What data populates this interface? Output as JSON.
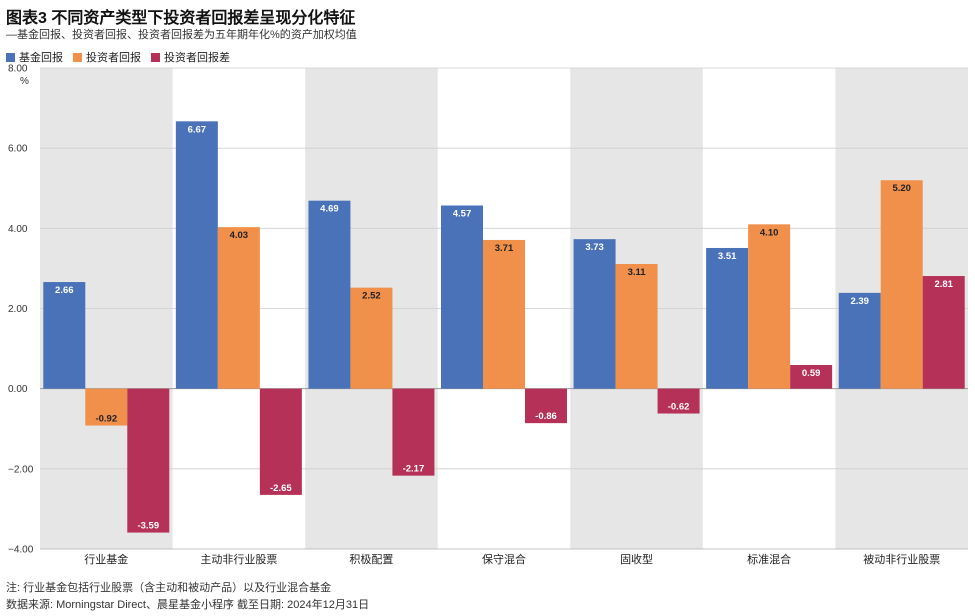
{
  "header": {
    "title": "图表3 不同资产类型下投资者回报差呈现分化特征",
    "subtitle": "—基金回报、投资者回报、投资者回报差为五年期年化%的资产加权均值"
  },
  "footer": {
    "note": "注: 行业基金包括行业股票（含主动和被动产品）以及行业混合基金",
    "source": "数据来源: Morningstar Direct、晨星基金小程序 截至日期: 2024年12月31日"
  },
  "colors": {
    "fund": "#4a72b8",
    "investor": "#f0904a",
    "gap": "#b53157",
    "band": "#e6e6e6"
  },
  "chart_data": {
    "type": "bar",
    "title": "图表3 不同资产类型下投资者回报差呈现分化特征",
    "ylabel": "%",
    "ylim": [
      -4.0,
      8.0
    ],
    "yticks": [
      "8.00",
      "6.00",
      "4.00",
      "2.00",
      "0.00",
      "−2.00",
      "−4.00"
    ],
    "ytick_values": [
      8,
      6,
      4,
      2,
      0,
      -2,
      -4
    ],
    "unit": "%",
    "categories": [
      "行业基金",
      "主动非行业股票",
      "积极配置",
      "保守混合",
      "固收型",
      "标准混合",
      "被动非行业股票"
    ],
    "series": [
      {
        "name": "基金回报",
        "values": [
          2.66,
          6.67,
          4.69,
          4.57,
          3.73,
          3.51,
          2.39
        ],
        "labels": [
          "2.66",
          "6.67",
          "4.69",
          "4.57",
          "3.73",
          "3.51",
          "2.39"
        ]
      },
      {
        "name": "投资者回报",
        "values": [
          -0.92,
          4.03,
          2.52,
          3.71,
          3.11,
          4.1,
          5.2
        ],
        "labels": [
          "-0.92",
          "4.03",
          "2.52",
          "3.71",
          "3.11",
          "4.10",
          "5.20"
        ]
      },
      {
        "name": "投资者回报差",
        "values": [
          -3.59,
          -2.65,
          -2.17,
          -0.86,
          -0.62,
          0.59,
          2.81
        ],
        "labels": [
          "-3.59",
          "-2.65",
          "-2.17",
          "-0.86",
          "-0.62",
          "0.59",
          "2.81"
        ]
      }
    ],
    "legend": "top-left"
  }
}
